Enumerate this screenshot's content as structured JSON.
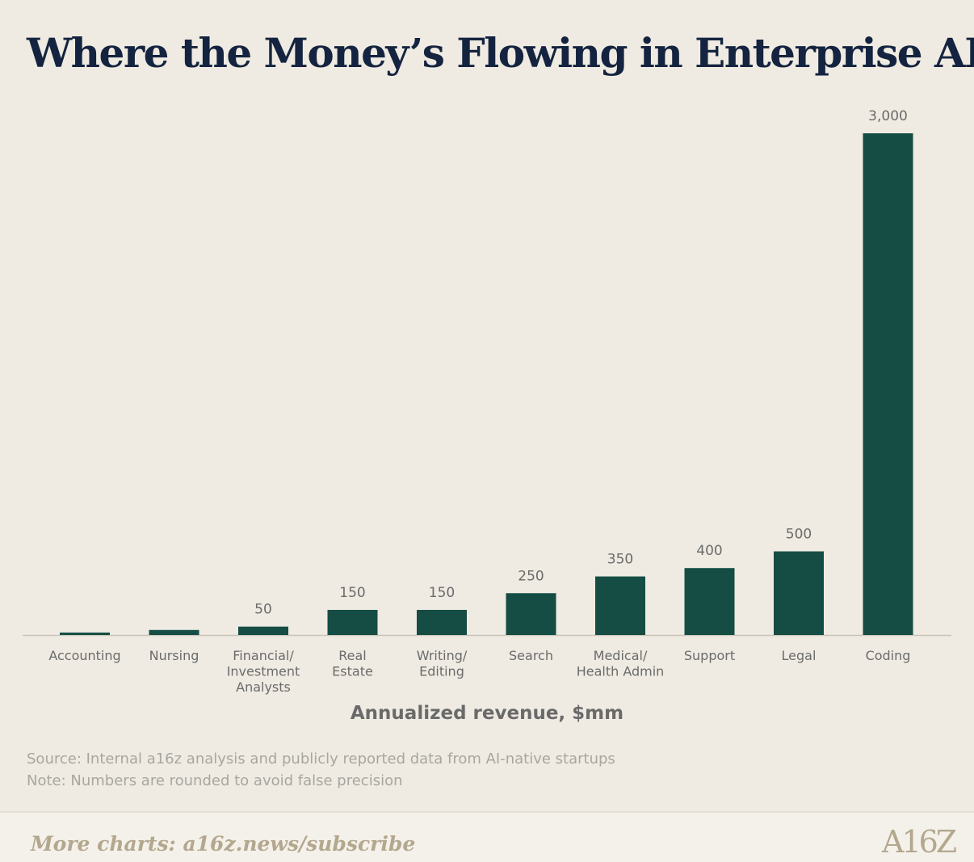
{
  "title": "Where the Money’s Flowing in Enterprise AI",
  "chart_data": {
    "type": "bar",
    "categories": [
      [
        "Accounting"
      ],
      [
        "Nursing"
      ],
      [
        "Financial/",
        "Investment",
        "Analysts"
      ],
      [
        "Real",
        "Estate"
      ],
      [
        "Writing/",
        "Editing"
      ],
      [
        "Search"
      ],
      [
        "Medical/",
        "Health Admin"
      ],
      [
        "Support"
      ],
      [
        "Legal"
      ],
      [
        "Coding"
      ]
    ],
    "values": [
      10,
      30,
      50,
      150,
      150,
      250,
      350,
      400,
      500,
      3000
    ],
    "value_labels": [
      "",
      "",
      "50",
      "150",
      "150",
      "250",
      "350",
      "400",
      "500",
      "3,000"
    ],
    "xlabel": "Annualized revenue, $mm",
    "ylabel": "",
    "ylim": [
      0,
      3000
    ],
    "grid": false,
    "bar_color": "#154d44"
  },
  "notes": {
    "source": "Source: Internal a16z analysis and publicly reported data from AI-native startups",
    "note": "Note: Numbers are rounded to avoid false precision"
  },
  "footer": {
    "cta": "More charts: a16z.news/subscribe",
    "logo": "A16Z"
  }
}
